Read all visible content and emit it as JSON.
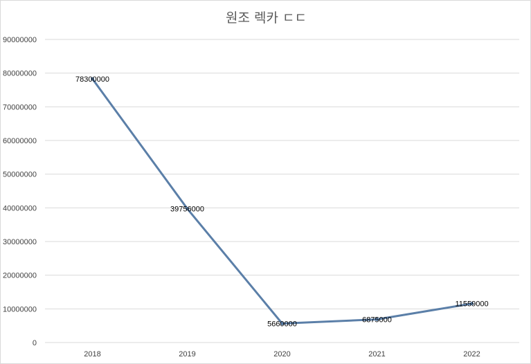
{
  "chart_data": {
    "type": "line",
    "title": "원조 렉카 ㄷㄷ",
    "categories": [
      "2018",
      "2019",
      "2020",
      "2021",
      "2022"
    ],
    "series": [
      {
        "values": [
          78300000,
          39756000,
          5660000,
          6875000,
          11559000
        ],
        "labels": [
          "78300000",
          "39756000",
          "5660000",
          "6875000",
          "11559000"
        ]
      }
    ],
    "ylim": [
      0,
      90000000
    ],
    "yticks": [
      "0",
      "10000000",
      "20000000",
      "30000000",
      "40000000",
      "50000000",
      "60000000",
      "70000000",
      "80000000",
      "90000000"
    ],
    "grid": true,
    "legend": "none",
    "line_color": "#5b7fa8",
    "grid_color": "#d9d9d9"
  }
}
